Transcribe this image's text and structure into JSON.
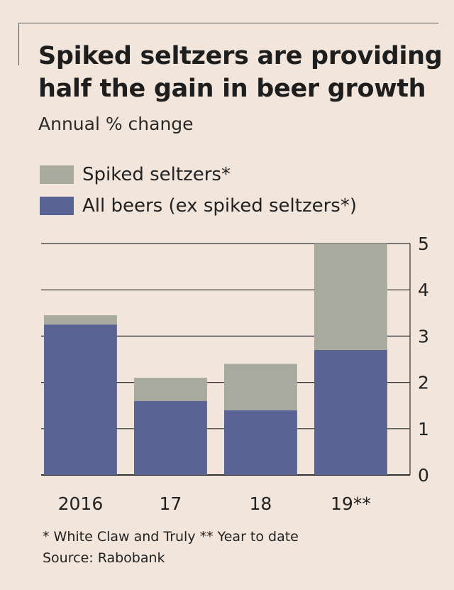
{
  "colors": {
    "background": "#f2e6dc",
    "spiked_seltzers": "#a8aa9e",
    "all_beers": "#5a6494",
    "grid": "#333333"
  },
  "title": "Spiked seltzers are providing half the gain in beer growth",
  "subtitle": "Annual % change",
  "legend": [
    {
      "label": "Spiked seltzers*",
      "color": "#a8aa9e"
    },
    {
      "label": "All beers (ex spiked seltzers*)",
      "color": "#5a6494"
    }
  ],
  "footnote": "* White Claw and Truly  ** Year to date",
  "source": "Source: Rabobank",
  "chart_data": {
    "type": "bar",
    "stacked": true,
    "categories": [
      "2016",
      "17",
      "18",
      "19**"
    ],
    "series": [
      {
        "name": "All beers (ex spiked seltzers*)",
        "values": [
          3.25,
          1.6,
          1.4,
          2.7
        ]
      },
      {
        "name": "Spiked seltzers*",
        "values": [
          0.2,
          0.5,
          1.0,
          2.3
        ]
      }
    ],
    "ylim": [
      0,
      5
    ],
    "yticks": [
      0,
      1,
      2,
      3,
      4,
      5
    ],
    "y_axis_side": "right",
    "grid": true,
    "legend_position": "top-left"
  }
}
